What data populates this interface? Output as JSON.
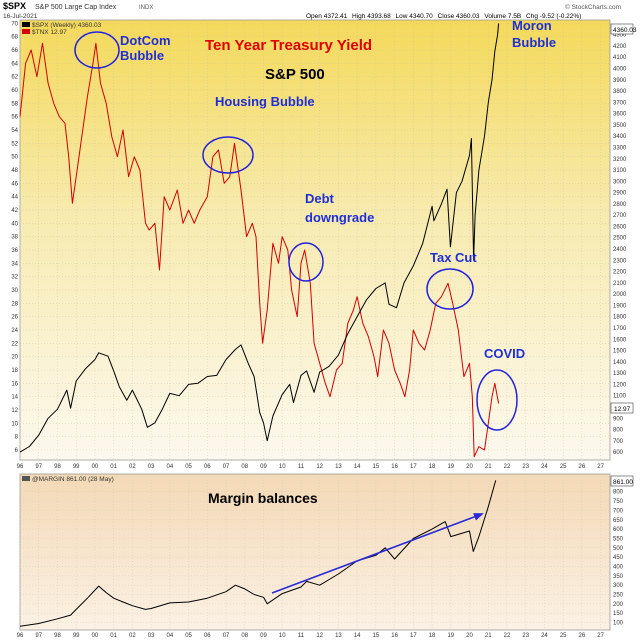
{
  "header": {
    "symbol": "$SPX",
    "description": "S&P 500 Large Cap Index",
    "exchange": "INDX",
    "date": "16-Jul-2021",
    "open_label": "Open",
    "open": "4372.41",
    "high_label": "High",
    "high": "4393.68",
    "low_label": "Low",
    "low": "4340.70",
    "close_label": "Close",
    "close": "4360.03",
    "volume_label": "Volume",
    "volume": "7.5B",
    "chg_label": "Chg",
    "chg": "-9.52 (-0.22%)",
    "watermark": "© StockCharts.com"
  },
  "legend": {
    "spx": "$SPX (Weekly) 4360.03",
    "tnx": "$TNX 12.97",
    "margin": "@MARGIN 861.00 (28 May)"
  },
  "annotations": {
    "title": "Ten Year Treasury Yield",
    "subtitle": "S&P 500",
    "dotcom": [
      "DotCom",
      "Bubble"
    ],
    "housing": "Housing Bubble",
    "debt": [
      "Debt",
      "downgrade"
    ],
    "taxcut": "Tax Cut",
    "moron": [
      "Moron",
      "Bubble"
    ],
    "covid": "COVID",
    "margin": "Margin balances"
  },
  "colors": {
    "spx_line": "#000000",
    "yield_line": "#d40000",
    "title": "#e00000",
    "annotation": "#1f2fd6",
    "circle": "#2222dd",
    "arrow": "#2a2ad8"
  },
  "chart_data": [
    {
      "type": "line",
      "x_ticks": [
        "96",
        "97",
        "98",
        "99",
        "00",
        "01",
        "02",
        "03",
        "04",
        "05",
        "06",
        "07",
        "08",
        "09",
        "10",
        "11",
        "12",
        "13",
        "14",
        "15",
        "16",
        "17",
        "18",
        "19",
        "20",
        "21",
        "22",
        "23",
        "24",
        "25",
        "26",
        "27"
      ],
      "left_axis": {
        "ticks": [
          6,
          8,
          10,
          12,
          14,
          16,
          18,
          20,
          22,
          24,
          26,
          28,
          30,
          32,
          34,
          36,
          38,
          40,
          42,
          44,
          46,
          48,
          50,
          52,
          54,
          56,
          58,
          60,
          62,
          64,
          66,
          68,
          70
        ],
        "ylim": [
          4.5,
          70.5
        ]
      },
      "right_axis": {
        "ticks": [
          600,
          700,
          800,
          900,
          1000,
          1100,
          1200,
          1300,
          1400,
          1500,
          1600,
          1700,
          1800,
          1900,
          2000,
          2100,
          2200,
          2300,
          2400,
          2500,
          2600,
          2700,
          2800,
          2900,
          3000,
          3100,
          3200,
          3300,
          3400,
          3500,
          3600,
          3700,
          3800,
          3900,
          4000,
          4100,
          4200,
          4300
        ],
        "ylim": [
          530,
          4430
        ],
        "last_value": "4360.03",
        "left_last_value": "12.97"
      },
      "series": [
        {
          "name": "$SPX (Weekly)",
          "axis": "right",
          "x": [
            1996.0,
            1996.5,
            1997.0,
            1997.5,
            1998.0,
            1998.5,
            1998.7,
            1999.0,
            1999.5,
            2000.0,
            2000.2,
            2000.7,
            2001.0,
            2001.3,
            2001.7,
            2002.0,
            2002.5,
            2002.8,
            2003.2,
            2003.6,
            2004.0,
            2004.5,
            2005.0,
            2005.5,
            2006.0,
            2006.5,
            2007.0,
            2007.5,
            2007.8,
            2008.2,
            2008.5,
            2008.8,
            2009.0,
            2009.2,
            2009.5,
            2010.0,
            2010.4,
            2010.6,
            2011.0,
            2011.3,
            2011.7,
            2012.0,
            2012.5,
            2013.0,
            2013.5,
            2014.0,
            2014.5,
            2015.0,
            2015.5,
            2015.7,
            2016.1,
            2016.5,
            2017.0,
            2017.5,
            2018.0,
            2018.1,
            2018.5,
            2018.8,
            2018.98,
            2019.3,
            2019.6,
            2020.0,
            2020.1,
            2020.22,
            2020.3,
            2020.5,
            2020.8,
            2021.0,
            2021.2,
            2021.35,
            2021.5,
            2021.55
          ],
          "y": [
            600,
            650,
            750,
            900,
            980,
            1150,
            990,
            1230,
            1340,
            1420,
            1480,
            1450,
            1320,
            1180,
            1060,
            1150,
            980,
            820,
            860,
            980,
            1120,
            1100,
            1200,
            1210,
            1270,
            1280,
            1420,
            1510,
            1550,
            1380,
            1270,
            950,
            860,
            700,
            920,
            1110,
            1200,
            1040,
            1280,
            1320,
            1130,
            1310,
            1360,
            1460,
            1650,
            1800,
            1950,
            2050,
            2100,
            1910,
            1880,
            2100,
            2250,
            2450,
            2780,
            2650,
            2800,
            2930,
            2420,
            2900,
            3000,
            3230,
            3380,
            2300,
            2700,
            3100,
            3400,
            3700,
            3900,
            4150,
            4300,
            4400
          ]
        },
        {
          "name": "$TNX",
          "axis": "left",
          "x": [
            1996.0,
            1996.3,
            1996.6,
            1996.9,
            1997.2,
            1997.5,
            1997.8,
            1998.1,
            1998.4,
            1998.6,
            1998.8,
            1999.0,
            1999.3,
            1999.6,
            1999.9,
            2000.05,
            2000.3,
            2000.6,
            2000.9,
            2001.2,
            2001.5,
            2001.8,
            2002.1,
            2002.4,
            2002.7,
            2002.9,
            2003.2,
            2003.45,
            2003.7,
            2004.0,
            2004.4,
            2004.7,
            2005.0,
            2005.3,
            2005.6,
            2006.0,
            2006.3,
            2006.6,
            2006.9,
            2007.2,
            2007.45,
            2007.8,
            2008.1,
            2008.4,
            2008.6,
            2008.8,
            2008.95,
            2009.2,
            2009.5,
            2009.8,
            2010.0,
            2010.3,
            2010.5,
            2010.8,
            2011.0,
            2011.2,
            2011.5,
            2011.7,
            2012.0,
            2012.3,
            2012.55,
            2012.9,
            2013.2,
            2013.5,
            2013.8,
            2014.0,
            2014.3,
            2014.6,
            2014.9,
            2015.1,
            2015.4,
            2015.7,
            2016.0,
            2016.3,
            2016.55,
            2016.8,
            2017.0,
            2017.3,
            2017.6,
            2017.9,
            2018.2,
            2018.5,
            2018.85,
            2019.1,
            2019.4,
            2019.7,
            2020.0,
            2020.15,
            2020.25,
            2020.5,
            2020.8,
            2021.0,
            2021.2,
            2021.35,
            2021.55
          ],
          "y": [
            56,
            64,
            66,
            62,
            67,
            61,
            58,
            56,
            55,
            50,
            43,
            47,
            53,
            59,
            64,
            67,
            61,
            58,
            53,
            50,
            54,
            47,
            50,
            48,
            40,
            39,
            40,
            33,
            44,
            42,
            45,
            40,
            42,
            40,
            42,
            44,
            50,
            51,
            46,
            47,
            52,
            45,
            38,
            40,
            38,
            28,
            22,
            27,
            37,
            34,
            38,
            36,
            30,
            26,
            34,
            36,
            31,
            22,
            19,
            16,
            14,
            18,
            19,
            25,
            27,
            29,
            25,
            23,
            20,
            17,
            24,
            22,
            18,
            16,
            14,
            18,
            24,
            22,
            21,
            24,
            28,
            29,
            31,
            28,
            24,
            17,
            19,
            14,
            5,
            6.5,
            6,
            10,
            14,
            16,
            12.97
          ]
        }
      ]
    },
    {
      "type": "line",
      "x_ticks": [
        "96",
        "97",
        "98",
        "99",
        "00",
        "01",
        "02",
        "03",
        "04",
        "05",
        "06",
        "07",
        "08",
        "09",
        "10",
        "11",
        "12",
        "13",
        "14",
        "15",
        "16",
        "17",
        "18",
        "19",
        "20",
        "21",
        "22",
        "23",
        "24",
        "25",
        "26",
        "27"
      ],
      "right_axis": {
        "ticks": [
          100,
          150,
          200,
          250,
          300,
          350,
          400,
          450,
          500,
          550,
          600,
          650,
          700,
          750,
          800
        ],
        "ylim": [
          60,
          895
        ],
        "last_value": "861.00"
      },
      "series": [
        {
          "name": "@MARGIN",
          "axis": "right",
          "x": [
            1996.0,
            1997.0,
            1998.0,
            1998.7,
            1999.0,
            1999.6,
            2000.2,
            2000.6,
            2001.0,
            2001.5,
            2002.0,
            2002.7,
            2003.0,
            2004.0,
            2005.0,
            2006.0,
            2007.0,
            2007.5,
            2008.0,
            2008.5,
            2009.0,
            2009.2,
            2010.0,
            2011.0,
            2011.3,
            2012.0,
            2013.0,
            2014.0,
            2015.0,
            2015.5,
            2016.0,
            2017.0,
            2018.0,
            2018.7,
            2019.0,
            2020.0,
            2020.2,
            2020.5,
            2021.0,
            2021.4
          ],
          "y": [
            80,
            95,
            120,
            140,
            170,
            230,
            295,
            260,
            230,
            210,
            190,
            170,
            175,
            205,
            210,
            230,
            265,
            300,
            280,
            250,
            235,
            200,
            255,
            290,
            320,
            300,
            360,
            430,
            460,
            500,
            440,
            550,
            600,
            640,
            560,
            590,
            480,
            560,
            720,
            861
          ]
        }
      ]
    }
  ]
}
